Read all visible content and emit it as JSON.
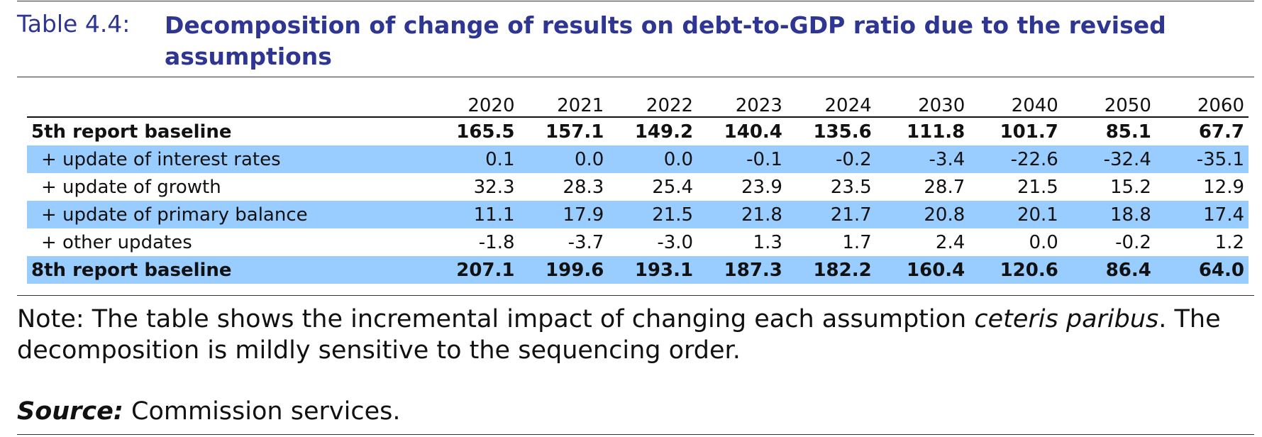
{
  "caption": {
    "label": "Table 4.4:",
    "title": "Decomposition of change of results on debt-to-GDP ratio due to the revised assumptions"
  },
  "table": {
    "years": [
      "2020",
      "2021",
      "2022",
      "2023",
      "2024",
      "2030",
      "2040",
      "2050",
      "2060"
    ],
    "rows": [
      {
        "label": "5th report baseline",
        "values": [
          "165.5",
          "157.1",
          "149.2",
          "140.4",
          "135.6",
          "111.8",
          "101.7",
          "85.1",
          "67.7"
        ]
      },
      {
        "label": "+ update of interest rates",
        "values": [
          "0.1",
          "0.0",
          "0.0",
          "-0.1",
          "-0.2",
          "-3.4",
          "-22.6",
          "-32.4",
          "-35.1"
        ]
      },
      {
        "label": "+ update of growth",
        "values": [
          "32.3",
          "28.3",
          "25.4",
          "23.9",
          "23.5",
          "28.7",
          "21.5",
          "15.2",
          "12.9"
        ]
      },
      {
        "label": "+ update of primary balance",
        "values": [
          "11.1",
          "17.9",
          "21.5",
          "21.8",
          "21.7",
          "20.8",
          "20.1",
          "18.8",
          "17.4"
        ]
      },
      {
        "label": "+ other updates",
        "values": [
          "-1.8",
          "-3.7",
          "-3.0",
          "1.3",
          "1.7",
          "2.4",
          "0.0",
          "-0.2",
          "1.2"
        ]
      },
      {
        "label": "8th report baseline",
        "values": [
          "207.1",
          "199.6",
          "193.1",
          "187.3",
          "182.2",
          "160.4",
          "120.6",
          "86.4",
          "64.0"
        ]
      }
    ]
  },
  "note": {
    "prefix": "Note: The table shows the incremental impact of changing each assumption ",
    "emphasis": "ceteris paribus",
    "suffix": ". The decomposition is mildly sensitive to the sequencing order."
  },
  "source": {
    "label": "Source:",
    "text": " Commission services."
  },
  "colors": {
    "title": "#2e3592",
    "shading": "#99ccff"
  }
}
